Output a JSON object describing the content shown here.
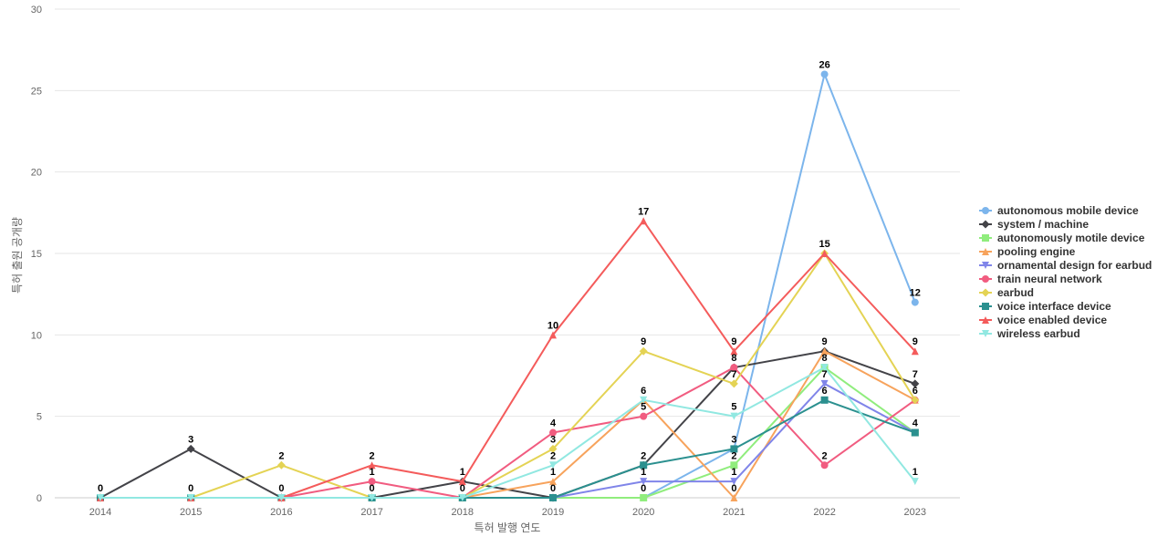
{
  "chart_data": {
    "type": "line",
    "title": "",
    "xlabel": "특허 발행 연도",
    "ylabel": "특허 출원 공개량",
    "ylim": [
      0,
      30
    ],
    "yticks": [
      0,
      5,
      10,
      15,
      20,
      25,
      30
    ],
    "x": [
      "2014",
      "2015",
      "2016",
      "2017",
      "2018",
      "2019",
      "2020",
      "2021",
      "2022",
      "2023"
    ],
    "grid": true,
    "legend_position": "right",
    "series": [
      {
        "name": "autonomous mobile device",
        "color": "#7cb5ec",
        "marker": "circle",
        "values": [
          0,
          0,
          0,
          0,
          0,
          0,
          0,
          3,
          26,
          12
        ]
      },
      {
        "name": "system / machine",
        "color": "#434348",
        "marker": "diamond",
        "values": [
          0,
          3,
          0,
          0,
          1,
          0,
          2,
          8,
          9,
          7
        ]
      },
      {
        "name": "autonomously motile device",
        "color": "#90ed7d",
        "marker": "square",
        "values": [
          0,
          0,
          0,
          0,
          0,
          0,
          0,
          2,
          8,
          4
        ]
      },
      {
        "name": "pooling engine",
        "color": "#f7a35c",
        "marker": "triangle",
        "values": [
          0,
          0,
          0,
          0,
          0,
          1,
          6,
          0,
          9,
          6
        ]
      },
      {
        "name": "ornamental design for earbud",
        "color": "#8085e9",
        "marker": "triangle-down",
        "values": [
          0,
          0,
          0,
          0,
          0,
          0,
          1,
          1,
          7,
          4
        ]
      },
      {
        "name": "train neural network",
        "color": "#f15c80",
        "marker": "circle",
        "values": [
          0,
          0,
          0,
          1,
          0,
          4,
          5,
          8,
          2,
          6
        ]
      },
      {
        "name": "earbud",
        "color": "#e4d354",
        "marker": "diamond",
        "values": [
          0,
          0,
          2,
          0,
          0,
          3,
          9,
          7,
          15,
          6
        ]
      },
      {
        "name": "voice interface device",
        "color": "#2b908f",
        "marker": "square",
        "values": [
          0,
          0,
          0,
          0,
          0,
          0,
          2,
          3,
          6,
          4
        ]
      },
      {
        "name": "voice enabled device",
        "color": "#f45b5b",
        "marker": "triangle",
        "values": [
          0,
          0,
          0,
          2,
          1,
          10,
          17,
          9,
          15,
          9
        ]
      },
      {
        "name": "wireless earbud",
        "color": "#91e8e1",
        "marker": "triangle-down",
        "values": [
          0,
          0,
          0,
          0,
          0,
          2,
          6,
          5,
          8,
          1
        ]
      }
    ],
    "data_labels": [
      {
        "series": 1,
        "x": 0,
        "text": "0"
      },
      {
        "series": 1,
        "x": 1,
        "text": "3"
      },
      {
        "series": 0,
        "x": 1,
        "text": "0"
      },
      {
        "series": 6,
        "x": 2,
        "text": "2"
      },
      {
        "series": 0,
        "x": 2,
        "text": "0"
      },
      {
        "series": 8,
        "x": 3,
        "text": "2"
      },
      {
        "series": 5,
        "x": 3,
        "text": "1"
      },
      {
        "series": 0,
        "x": 3,
        "text": "0"
      },
      {
        "series": 8,
        "x": 4,
        "text": "1"
      },
      {
        "series": 0,
        "x": 4,
        "text": "0"
      },
      {
        "series": 8,
        "x": 5,
        "text": "10"
      },
      {
        "series": 5,
        "x": 5,
        "text": "4"
      },
      {
        "series": 6,
        "x": 5,
        "text": "3"
      },
      {
        "series": 9,
        "x": 5,
        "text": "2"
      },
      {
        "series": 3,
        "x": 5,
        "text": "1"
      },
      {
        "series": 0,
        "x": 5,
        "text": "0"
      },
      {
        "series": 8,
        "x": 6,
        "text": "17"
      },
      {
        "series": 6,
        "x": 6,
        "text": "9"
      },
      {
        "series": 3,
        "x": 6,
        "text": "6"
      },
      {
        "series": 5,
        "x": 6,
        "text": "5"
      },
      {
        "series": 1,
        "x": 6,
        "text": "2"
      },
      {
        "series": 4,
        "x": 6,
        "text": "1"
      },
      {
        "series": 0,
        "x": 6,
        "text": "0"
      },
      {
        "series": 8,
        "x": 7,
        "text": "9"
      },
      {
        "series": 5,
        "x": 7,
        "text": "8"
      },
      {
        "series": 6,
        "x": 7,
        "text": "7"
      },
      {
        "series": 9,
        "x": 7,
        "text": "5"
      },
      {
        "series": 7,
        "x": 7,
        "text": "3"
      },
      {
        "series": 2,
        "x": 7,
        "text": "2"
      },
      {
        "series": 4,
        "x": 7,
        "text": "1"
      },
      {
        "series": 3,
        "x": 7,
        "text": "0"
      },
      {
        "series": 0,
        "x": 8,
        "text": "26"
      },
      {
        "series": 8,
        "x": 8,
        "text": "15"
      },
      {
        "series": 1,
        "x": 8,
        "text": "9"
      },
      {
        "series": 2,
        "x": 8,
        "text": "8"
      },
      {
        "series": 4,
        "x": 8,
        "text": "7"
      },
      {
        "series": 7,
        "x": 8,
        "text": "6"
      },
      {
        "series": 5,
        "x": 8,
        "text": "2"
      },
      {
        "series": 0,
        "x": 9,
        "text": "12"
      },
      {
        "series": 8,
        "x": 9,
        "text": "9"
      },
      {
        "series": 1,
        "x": 9,
        "text": "7"
      },
      {
        "series": 3,
        "x": 9,
        "text": "6"
      },
      {
        "series": 7,
        "x": 9,
        "text": "4"
      },
      {
        "series": 9,
        "x": 9,
        "text": "1"
      }
    ]
  }
}
